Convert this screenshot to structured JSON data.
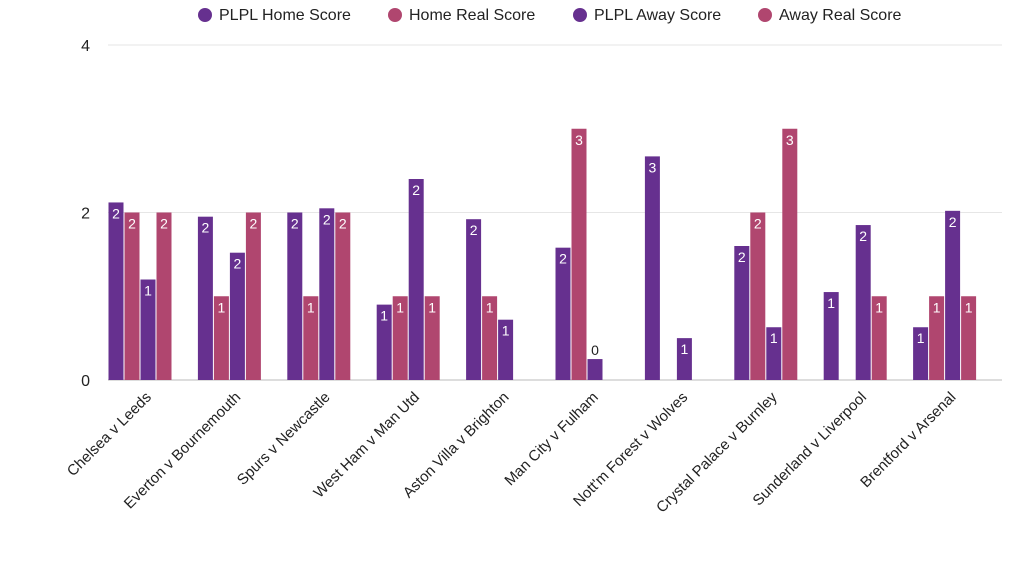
{
  "chart_data": {
    "type": "bar",
    "title": "",
    "xlabel": "",
    "ylabel": "",
    "ylim": [
      0,
      4
    ],
    "yticks": [
      0,
      2,
      4
    ],
    "grid": true,
    "legend_position": "top",
    "categories": [
      "Chelsea v Leeds",
      "Everton v Bournemouth",
      "Spurs v Newcastle",
      "West Ham v Man Utd",
      "Aston Villa v Brighton",
      "Man City v Fulham",
      "Nott'm Forest v Wolves",
      "Crystal Palace v Burnley",
      "Sunderland v Liverpool",
      "Brentford v Arsenal"
    ],
    "series": [
      {
        "name": "PLPL Home Score",
        "color": "#66308f",
        "values": [
          2.12,
          1.95,
          2.0,
          0.9,
          1.92,
          1.58,
          2.67,
          1.6,
          1.05,
          0.63
        ],
        "labels": [
          "2",
          "2",
          "2",
          "1",
          "2",
          "2",
          "3",
          "2",
          "1",
          "1"
        ]
      },
      {
        "name": "Home Real Score",
        "color": "#b0466f",
        "values": [
          2,
          1,
          1,
          1,
          1,
          3,
          0,
          2,
          0,
          1
        ],
        "labels": [
          "2",
          "1",
          "1",
          "1",
          "1",
          "3",
          "",
          "2",
          "",
          "1"
        ]
      },
      {
        "name": "PLPL Away Score",
        "color": "#66308f",
        "values": [
          1.2,
          1.52,
          2.05,
          2.4,
          0.72,
          0.25,
          0.5,
          0.63,
          1.85,
          2.02
        ],
        "labels": [
          "1",
          "2",
          "2",
          "2",
          "1",
          "0",
          "1",
          "1",
          "2",
          "2"
        ]
      },
      {
        "name": "Away Real Score",
        "color": "#b0466f",
        "values": [
          2,
          2,
          2,
          1,
          0,
          0,
          0,
          3,
          1,
          1
        ],
        "labels": [
          "2",
          "2",
          "2",
          "1",
          "",
          "",
          "",
          "3",
          "1",
          "1"
        ]
      }
    ]
  }
}
